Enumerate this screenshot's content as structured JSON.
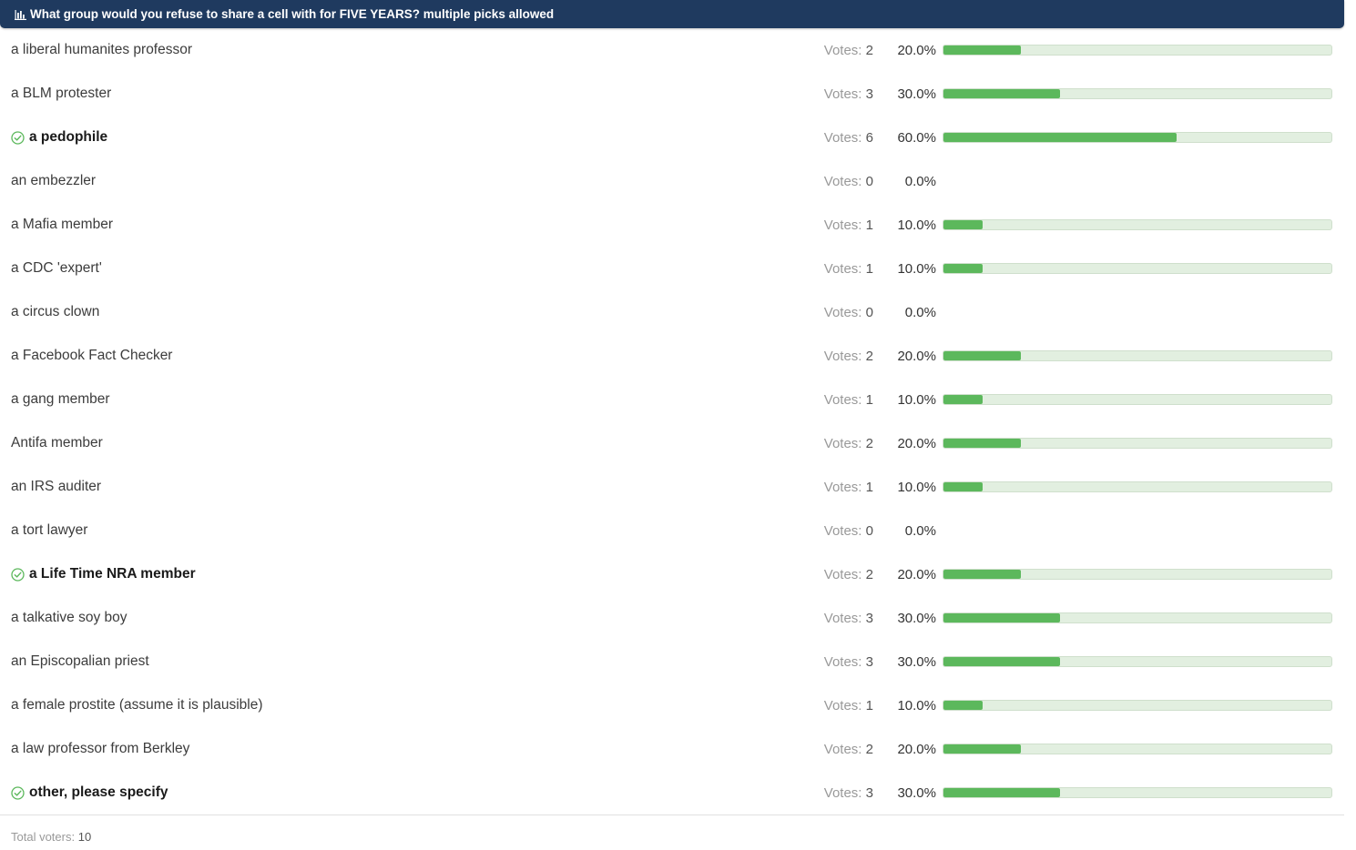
{
  "poll": {
    "question": "What group would you refuse to share a cell with for FIVE YEARS? multiple picks allowed",
    "votes_label": "Votes:",
    "options": [
      {
        "label": "a liberal humanites professor",
        "votes": "2",
        "pct": "20.0%",
        "share": 0.2,
        "voted": false
      },
      {
        "label": "a BLM protester",
        "votes": "3",
        "pct": "30.0%",
        "share": 0.3,
        "voted": false
      },
      {
        "label": "a pedophile",
        "votes": "6",
        "pct": "60.0%",
        "share": 0.6,
        "voted": true
      },
      {
        "label": "an embezzler",
        "votes": "0",
        "pct": "0.0%",
        "share": 0,
        "voted": false
      },
      {
        "label": "a Mafia member",
        "votes": "1",
        "pct": "10.0%",
        "share": 0.1,
        "voted": false
      },
      {
        "label": "a CDC 'expert'",
        "votes": "1",
        "pct": "10.0%",
        "share": 0.1,
        "voted": false
      },
      {
        "label": "a circus clown",
        "votes": "0",
        "pct": "0.0%",
        "share": 0,
        "voted": false
      },
      {
        "label": "a Facebook Fact Checker",
        "votes": "2",
        "pct": "20.0%",
        "share": 0.2,
        "voted": false
      },
      {
        "label": "a gang member",
        "votes": "1",
        "pct": "10.0%",
        "share": 0.1,
        "voted": false
      },
      {
        "label": "Antifa member",
        "votes": "2",
        "pct": "20.0%",
        "share": 0.2,
        "voted": false
      },
      {
        "label": "an IRS auditer",
        "votes": "1",
        "pct": "10.0%",
        "share": 0.1,
        "voted": false
      },
      {
        "label": "a tort lawyer",
        "votes": "0",
        "pct": "0.0%",
        "share": 0,
        "voted": false
      },
      {
        "label": "a Life Time NRA member",
        "votes": "2",
        "pct": "20.0%",
        "share": 0.2,
        "voted": true
      },
      {
        "label": "a talkative soy boy",
        "votes": "3",
        "pct": "30.0%",
        "share": 0.3,
        "voted": false
      },
      {
        "label": "an Episcopalian priest",
        "votes": "3",
        "pct": "30.0%",
        "share": 0.3,
        "voted": false
      },
      {
        "label": "a female prostite (assume it is plausible)",
        "votes": "1",
        "pct": "10.0%",
        "share": 0.1,
        "voted": false
      },
      {
        "label": "a law professor from Berkley",
        "votes": "2",
        "pct": "20.0%",
        "share": 0.2,
        "voted": false
      },
      {
        "label": "other, please specify",
        "votes": "3",
        "pct": "30.0%",
        "share": 0.3,
        "voted": true
      }
    ],
    "total_label": "Total voters:",
    "total_voters": "10"
  },
  "icons": {
    "header": "bar-chart-icon",
    "voted": "check-circle-icon"
  },
  "colors": {
    "header_bg": "#1f3a5f",
    "bar_fill": "#5cb85c",
    "bar_track": "#e2efe0",
    "check": "#5cb85c"
  }
}
